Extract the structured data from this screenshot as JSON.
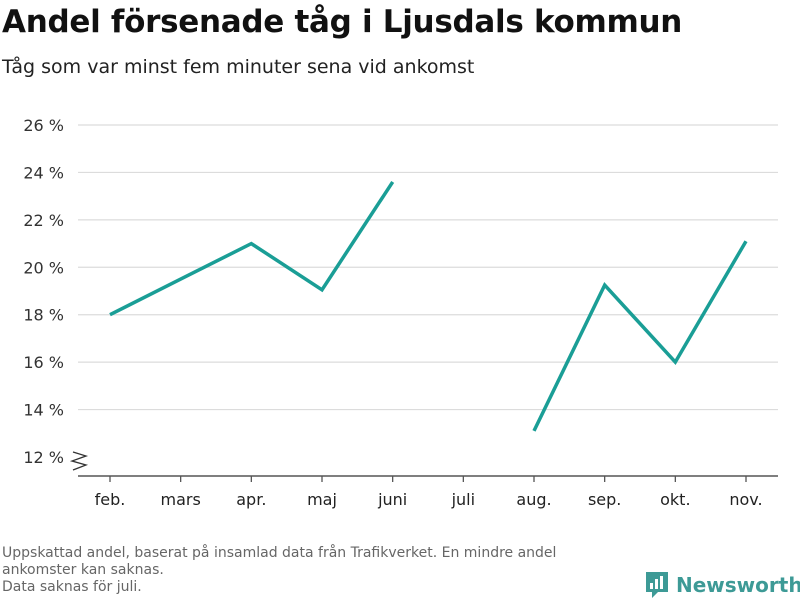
{
  "header": {
    "title": "Andel försenade tåg i Ljusdals kommun",
    "subtitle": "Tåg som var minst fem minuter sena vid ankomst"
  },
  "footer": {
    "note_line1": "Uppskattad andel, baserat på insamlad data från Trafikverket. En mindre andel",
    "note_line2": "ankomster kan saknas.",
    "note_line3": "Data saknas för juli.",
    "brand": "Newsworthy",
    "brand_icon": "bar-chart-logo-icon"
  },
  "colors": {
    "line": "#1a9e96",
    "brand": "#3d9a96",
    "grid": "#dcdcdc",
    "axis": "#555555"
  },
  "chart_data": {
    "type": "line",
    "categories": [
      "feb.",
      "mars",
      "apr.",
      "maj",
      "juni",
      "juli",
      "aug.",
      "sep.",
      "okt.",
      "nov."
    ],
    "series": [
      {
        "values": [
          18.0,
          19.5,
          21.0,
          19.05,
          23.6,
          null,
          13.1,
          19.25,
          16.0,
          21.1
        ]
      }
    ],
    "ylim": [
      12,
      26
    ],
    "yticks": [
      12,
      14,
      16,
      18,
      20,
      22,
      24,
      26
    ],
    "ytick_labels": [
      "12 %",
      "14 %",
      "16 %",
      "18 %",
      "20 %",
      "22 %",
      "24 %",
      "26 %"
    ],
    "y_axis_break": true,
    "grid": true,
    "xlabel": "",
    "ylabel": ""
  }
}
